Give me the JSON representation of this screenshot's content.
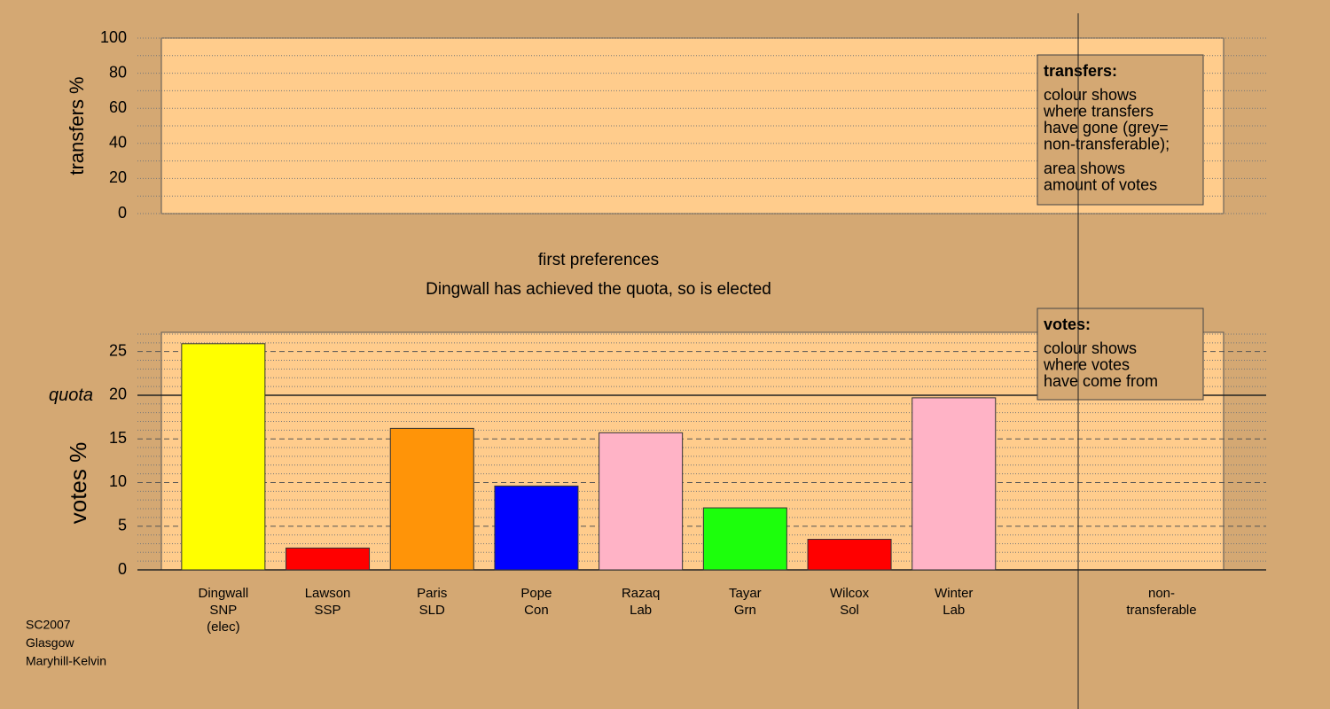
{
  "chart_data": [
    {
      "type": "bar",
      "ylabel": "transfers %",
      "categories": [],
      "values": [],
      "ylim": [
        0,
        100
      ],
      "yticks": [
        0,
        20,
        40,
        60,
        80,
        100
      ],
      "minor_yticks": [
        10,
        30,
        50,
        70,
        90
      ],
      "note": {
        "title": "transfers:",
        "paragraphs": [
          [
            "colour shows",
            "where transfers",
            "have gone (grey=",
            "non-transferable);"
          ],
          [
            "area shows",
            "amount of votes"
          ]
        ]
      }
    },
    {
      "type": "bar",
      "title": "first preferences",
      "subtitle": "Dingwall has achieved the quota, so is elected",
      "ylabel": "votes %",
      "categories": [
        [
          "Dingwall",
          "SNP",
          "(elec)"
        ],
        [
          "Lawson",
          "SSP"
        ],
        [
          "Paris",
          "SLD"
        ],
        [
          "Pope",
          "Con"
        ],
        [
          "Razaq",
          "Lab"
        ],
        [
          "Tayar",
          "Grn"
        ],
        [
          "Wilcox",
          "Sol"
        ],
        [
          "Winter",
          "Lab"
        ],
        [
          "non-",
          "transferable"
        ]
      ],
      "values": [
        25.9,
        2.5,
        16.2,
        9.6,
        15.7,
        7.1,
        3.5,
        19.7,
        null
      ],
      "colors": [
        "#ffff00",
        "#ff0000",
        "#ff9408",
        "#0000ff",
        "#ffb3c6",
        "#1cff0c",
        "#ff0000",
        "#ffb3c6",
        null
      ],
      "ylim": [
        0,
        27.2
      ],
      "yticks": [
        0,
        5,
        10,
        15,
        20,
        25
      ],
      "minor_yticks": [
        1,
        2,
        3,
        4,
        6,
        7,
        8,
        9,
        11,
        12,
        13,
        14,
        16,
        17,
        18,
        19,
        21,
        22,
        23,
        24,
        26,
        27
      ],
      "reference_line": {
        "value": 20,
        "label": "quota"
      },
      "note": {
        "title": "votes:",
        "paragraphs": [
          [
            "colour shows",
            "where votes",
            "have come from"
          ]
        ]
      }
    }
  ],
  "footer": [
    "SC2007",
    "Glasgow",
    "Maryhill-Kelvin"
  ]
}
